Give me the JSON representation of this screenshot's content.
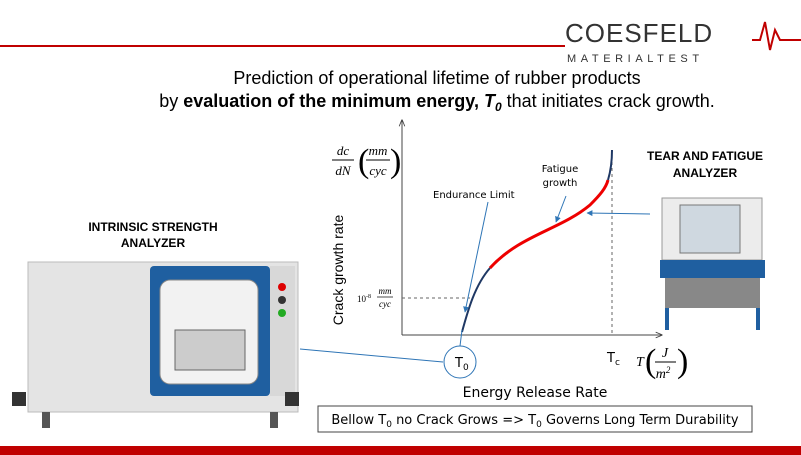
{
  "logo": {
    "name": "COESFELD",
    "tagline": "MATERIALTEST"
  },
  "header": {
    "line1": "Prediction of operational lifetime of rubber products",
    "line2": [
      "by ",
      "evaluation of the minimum energy, ",
      "T",
      "0",
      " that initiates crack growth."
    ]
  },
  "left_label": [
    "INTRINSIC STRENGTH",
    "ANALYZER"
  ],
  "right_label": [
    "TEAR AND FATIGUE",
    "ANALYZER"
  ],
  "diagram": {
    "y_axis_label": "Crack growth rate",
    "y_unit": {
      "dc": "dc",
      "dN": "dN",
      "mm": "mm",
      "cyc": "cyc"
    },
    "endurance_limit": "Endurance Limit",
    "fatigue_growth": [
      "Fatigue",
      "growth"
    ],
    "threshold_rate": {
      "base": "10",
      "exp": "-8",
      "mm": "mm",
      "cyc": "cyc"
    },
    "t0": {
      "base": "T",
      "sub": "0"
    },
    "tc": {
      "base": "T",
      "sub": "c"
    },
    "x_unit": {
      "T": "T",
      "J": "J",
      "m": "m",
      "exp": "2"
    },
    "x_axis_label": "Energy Release Rate"
  },
  "footer_note": [
    "Bellow T",
    "0",
    " no Crack Grows => T",
    "0",
    " Governs Long Term Durability"
  ]
}
